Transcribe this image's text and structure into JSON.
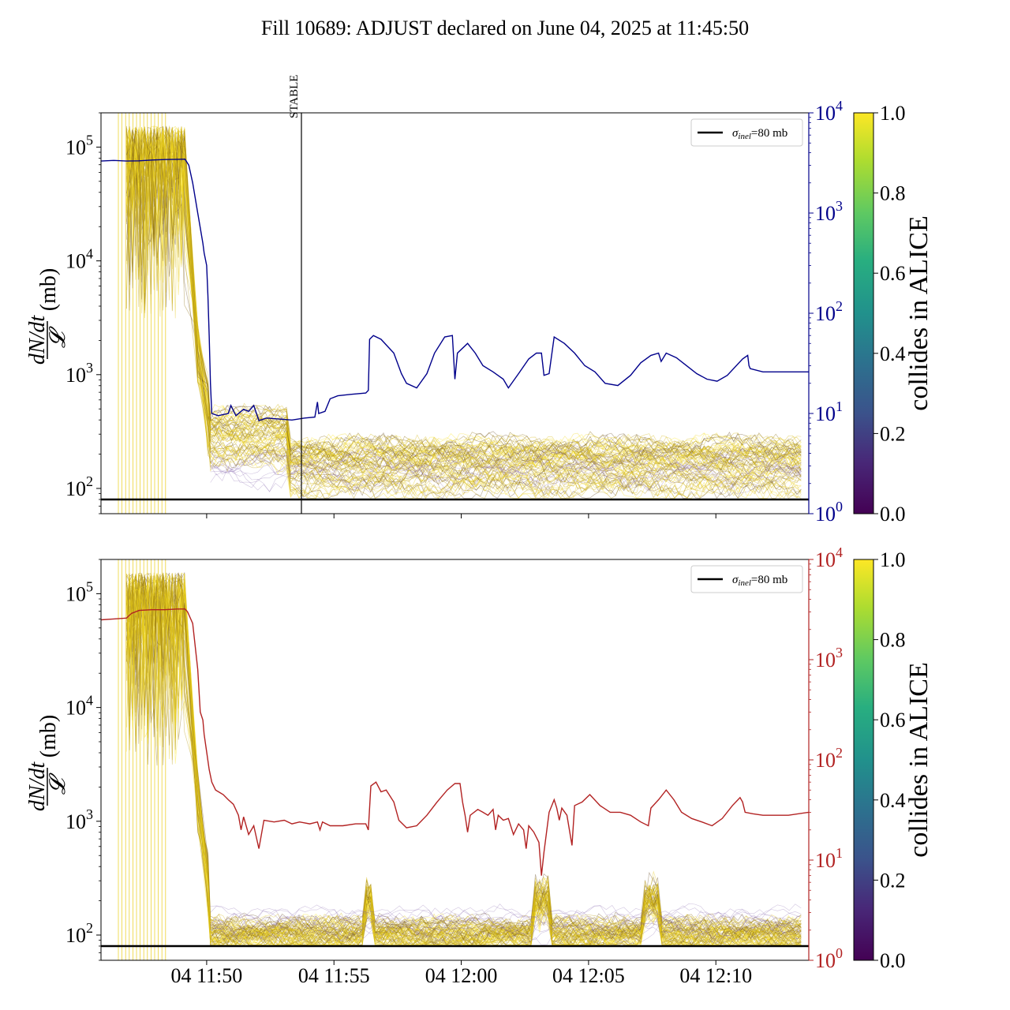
{
  "title": "Fill 10689: ADJUST declared on June 04, 2025 at 11:45:50",
  "colors": {
    "upper_overlay": "#00008b",
    "lower_overlay": "#b22222",
    "upper_right_axis": "#00008b",
    "lower_right_axis": "#b22222",
    "reference_line": "#000000"
  },
  "colorbar": {
    "label": "collides in ALICE",
    "ticks": [
      "0.0",
      "0.2",
      "0.4",
      "0.6",
      "0.8",
      "1.0"
    ],
    "colormap": "viridis"
  },
  "chart_data": [
    {
      "type": "line",
      "panel": "upper",
      "ylabel": "dN/dt / 𝓛 (mb)",
      "y_scale": "log",
      "ylim": [
        60,
        200000
      ],
      "y_ticks": [
        {
          "value": 100,
          "base": "10",
          "exp": "2"
        },
        {
          "value": 1000,
          "base": "10",
          "exp": "3"
        },
        {
          "value": 10000,
          "base": "10",
          "exp": "4"
        },
        {
          "value": 100000,
          "base": "10",
          "exp": "5"
        }
      ],
      "y2_scale": "log",
      "y2lim": [
        1,
        10000
      ],
      "y2_ticks": [
        {
          "value": 1,
          "base": "10",
          "exp": "0"
        },
        {
          "value": 10,
          "base": "10",
          "exp": "1"
        },
        {
          "value": 100,
          "base": "10",
          "exp": "2"
        },
        {
          "value": 1000,
          "base": "10",
          "exp": "3"
        },
        {
          "value": 10000,
          "base": "10",
          "exp": "4"
        }
      ],
      "xlim": [
        "11:45:50",
        "11:13:40"
      ],
      "x_ticks": [
        "04 11:50",
        "04 11:55",
        "04 12:00",
        "04 12:05",
        "04 12:10"
      ],
      "x_tick_labels_shown": false,
      "legend": {
        "label_sigma": "σ",
        "label_sub": "inel",
        "label_rest": "=80 mb",
        "position": "upper right"
      },
      "reference_line": {
        "value": 80
      },
      "vline": {
        "time": "11:53:40",
        "label": "STABLE"
      },
      "right_axis_series": [
        [
          0,
          3300
        ],
        [
          0.5,
          3350
        ],
        [
          1,
          3300
        ],
        [
          1.5,
          3320
        ],
        [
          2,
          3380
        ],
        [
          2.5,
          3420
        ],
        [
          3,
          3440
        ],
        [
          3.3,
          3450
        ],
        [
          3.45,
          3000
        ],
        [
          3.6,
          2000
        ],
        [
          3.8,
          1000
        ],
        [
          4.0,
          500
        ],
        [
          4.05,
          400
        ],
        [
          4.15,
          300
        ],
        [
          4.2,
          150
        ],
        [
          4.25,
          60
        ],
        [
          4.3,
          20
        ],
        [
          4.35,
          10
        ],
        [
          4.6,
          9.5
        ],
        [
          5.0,
          10
        ],
        [
          5.1,
          12
        ],
        [
          5.3,
          9.5
        ],
        [
          5.6,
          11
        ],
        [
          5.8,
          10.5
        ],
        [
          6.0,
          12
        ],
        [
          6.2,
          8.5
        ],
        [
          6.5,
          9
        ],
        [
          7.0,
          8.8
        ],
        [
          7.5,
          8.6
        ],
        [
          8.0,
          9
        ],
        [
          8.4,
          9.2
        ],
        [
          8.5,
          13
        ],
        [
          8.55,
          10
        ],
        [
          8.8,
          10.5
        ],
        [
          9.0,
          14
        ],
        [
          9.3,
          15
        ],
        [
          9.8,
          15.5
        ],
        [
          10.4,
          16
        ],
        [
          10.5,
          17
        ],
        [
          10.55,
          55
        ],
        [
          10.7,
          60
        ],
        [
          11.0,
          55
        ],
        [
          11.5,
          40
        ],
        [
          11.8,
          25
        ],
        [
          12.0,
          20
        ],
        [
          12.4,
          18
        ],
        [
          12.8,
          25
        ],
        [
          13.1,
          40
        ],
        [
          13.5,
          58
        ],
        [
          13.8,
          60
        ],
        [
          13.9,
          22
        ],
        [
          14.0,
          40
        ],
        [
          14.4,
          50
        ],
        [
          14.7,
          40
        ],
        [
          15.0,
          30
        ],
        [
          15.4,
          26
        ],
        [
          15.8,
          22
        ],
        [
          16.0,
          18
        ],
        [
          16.4,
          25
        ],
        [
          16.8,
          35
        ],
        [
          17.1,
          40
        ],
        [
          17.3,
          40
        ],
        [
          17.4,
          24
        ],
        [
          17.6,
          25
        ],
        [
          17.8,
          58
        ],
        [
          18.2,
          50
        ],
        [
          18.6,
          40
        ],
        [
          19.0,
          30
        ],
        [
          19.4,
          26
        ],
        [
          19.8,
          20
        ],
        [
          20.3,
          19
        ],
        [
          20.8,
          24
        ],
        [
          21.2,
          32
        ],
        [
          21.6,
          38
        ],
        [
          21.9,
          40
        ],
        [
          22.0,
          33
        ],
        [
          22.2,
          40
        ],
        [
          22.6,
          36
        ],
        [
          23.0,
          30
        ],
        [
          23.4,
          25
        ],
        [
          23.8,
          22
        ],
        [
          24.2,
          21
        ],
        [
          24.6,
          24
        ],
        [
          25.2,
          35
        ],
        [
          25.4,
          38
        ],
        [
          25.45,
          30
        ],
        [
          25.5,
          28
        ],
        [
          26.0,
          26
        ],
        [
          26.5,
          26
        ],
        [
          27.0,
          26
        ],
        [
          27.8,
          26
        ]
      ]
    },
    {
      "type": "line",
      "panel": "lower",
      "ylabel": "dN/dt / 𝓛 (mb)",
      "y_scale": "log",
      "ylim": [
        60,
        200000
      ],
      "y_ticks": [
        {
          "value": 100,
          "base": "10",
          "exp": "2"
        },
        {
          "value": 1000,
          "base": "10",
          "exp": "3"
        },
        {
          "value": 10000,
          "base": "10",
          "exp": "4"
        },
        {
          "value": 100000,
          "base": "10",
          "exp": "5"
        }
      ],
      "y2_scale": "log",
      "y2lim": [
        1,
        10000
      ],
      "y2_ticks": [
        {
          "value": 1,
          "base": "10",
          "exp": "0"
        },
        {
          "value": 10,
          "base": "10",
          "exp": "1"
        },
        {
          "value": 100,
          "base": "10",
          "exp": "2"
        },
        {
          "value": 1000,
          "base": "10",
          "exp": "3"
        },
        {
          "value": 10000,
          "base": "10",
          "exp": "4"
        }
      ],
      "x_ticks": [
        "04 11:50",
        "04 11:55",
        "04 12:00",
        "04 12:05",
        "04 12:10"
      ],
      "x_tick_labels_shown": true,
      "legend": {
        "label_sigma": "σ",
        "label_sub": "inel",
        "label_rest": "=80 mb",
        "position": "upper right"
      },
      "reference_line": {
        "value": 80
      },
      "right_axis_series": [
        [
          0,
          2500
        ],
        [
          0.5,
          2550
        ],
        [
          1,
          2600
        ],
        [
          1.2,
          2900
        ],
        [
          1.5,
          3100
        ],
        [
          2.0,
          3150
        ],
        [
          2.5,
          3150
        ],
        [
          3.0,
          3200
        ],
        [
          3.3,
          3200
        ],
        [
          3.4,
          3000
        ],
        [
          3.6,
          2300
        ],
        [
          3.8,
          800
        ],
        [
          3.9,
          300
        ],
        [
          4.0,
          250
        ],
        [
          4.05,
          180
        ],
        [
          4.15,
          120
        ],
        [
          4.25,
          80
        ],
        [
          4.35,
          60
        ],
        [
          4.5,
          50
        ],
        [
          4.8,
          45
        ],
        [
          5.0,
          40
        ],
        [
          5.2,
          36
        ],
        [
          5.4,
          28
        ],
        [
          5.5,
          20
        ],
        [
          5.6,
          27
        ],
        [
          5.8,
          18
        ],
        [
          6.0,
          22
        ],
        [
          6.2,
          13
        ],
        [
          6.4,
          25
        ],
        [
          6.8,
          24
        ],
        [
          7.2,
          25
        ],
        [
          7.5,
          23
        ],
        [
          7.8,
          24
        ],
        [
          8.2,
          23
        ],
        [
          8.5,
          24
        ],
        [
          8.6,
          20
        ],
        [
          8.7,
          24
        ],
        [
          9.0,
          22
        ],
        [
          9.5,
          22
        ],
        [
          10.0,
          23
        ],
        [
          10.4,
          23
        ],
        [
          10.5,
          20
        ],
        [
          10.6,
          55
        ],
        [
          10.8,
          60
        ],
        [
          11.0,
          48
        ],
        [
          11.2,
          50
        ],
        [
          11.5,
          38
        ],
        [
          11.7,
          25
        ],
        [
          12.0,
          21
        ],
        [
          12.4,
          22
        ],
        [
          12.8,
          28
        ],
        [
          13.2,
          38
        ],
        [
          13.6,
          50
        ],
        [
          13.9,
          58
        ],
        [
          14.1,
          58
        ],
        [
          14.2,
          38
        ],
        [
          14.3,
          28
        ],
        [
          14.4,
          19
        ],
        [
          14.5,
          28
        ],
        [
          14.8,
          32
        ],
        [
          15.0,
          30
        ],
        [
          15.2,
          28
        ],
        [
          15.4,
          32
        ],
        [
          15.5,
          20
        ],
        [
          15.6,
          28
        ],
        [
          15.8,
          25
        ],
        [
          16.0,
          26
        ],
        [
          16.2,
          18
        ],
        [
          16.4,
          23
        ],
        [
          16.6,
          20
        ],
        [
          16.7,
          13
        ],
        [
          16.8,
          22
        ],
        [
          17.0,
          19
        ],
        [
          17.2,
          15
        ],
        [
          17.3,
          7
        ],
        [
          17.4,
          12
        ],
        [
          17.6,
          30
        ],
        [
          17.8,
          40
        ],
        [
          17.9,
          33
        ],
        [
          18.0,
          25
        ],
        [
          18.1,
          33
        ],
        [
          18.3,
          28
        ],
        [
          18.5,
          14
        ],
        [
          18.6,
          35
        ],
        [
          18.9,
          38
        ],
        [
          19.2,
          45
        ],
        [
          19.6,
          35
        ],
        [
          20.0,
          30
        ],
        [
          20.4,
          30
        ],
        [
          20.8,
          28
        ],
        [
          21.2,
          24
        ],
        [
          21.5,
          22
        ],
        [
          21.6,
          33
        ],
        [
          21.9,
          40
        ],
        [
          22.2,
          50
        ],
        [
          22.5,
          40
        ],
        [
          22.8,
          30
        ],
        [
          23.2,
          26
        ],
        [
          23.6,
          24
        ],
        [
          24.0,
          22
        ],
        [
          24.4,
          26
        ],
        [
          24.8,
          35
        ],
        [
          25.1,
          42
        ],
        [
          25.2,
          38
        ],
        [
          25.3,
          30
        ],
        [
          25.6,
          29
        ],
        [
          26.0,
          28
        ],
        [
          26.5,
          28
        ],
        [
          27.0,
          28
        ],
        [
          27.8,
          30
        ]
      ]
    }
  ]
}
